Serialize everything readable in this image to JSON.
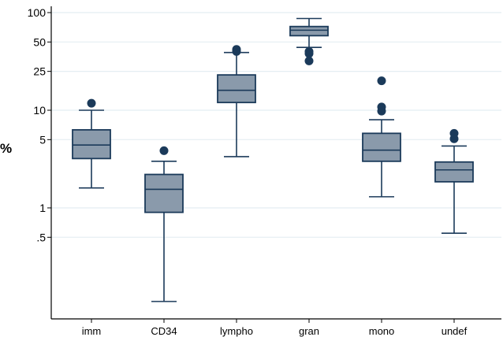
{
  "chart_data": {
    "type": "box",
    "ylabel": "%",
    "yscale": "log",
    "ylim": [
      0.07,
      130
    ],
    "yticks": [
      {
        "value": 100,
        "label": "100"
      },
      {
        "value": 50,
        "label": "50"
      },
      {
        "value": 25,
        "label": "25"
      },
      {
        "value": 10,
        "label": "10"
      },
      {
        "value": 5,
        "label": "5"
      },
      {
        "value": 1,
        "label": "1"
      },
      {
        "value": 0.5,
        "label": ".5"
      }
    ],
    "grid": true,
    "categories": [
      "imm",
      "CD34",
      "lympho",
      "gran",
      "mono",
      "undef"
    ],
    "boxes": [
      {
        "min": 1.6,
        "q1": 3.2,
        "median": 4.4,
        "q3": 6.3,
        "max": 10.0,
        "outliers": [
          11.8
        ]
      },
      {
        "min": 0.11,
        "q1": 0.9,
        "median": 1.55,
        "q3": 2.2,
        "max": 3.0,
        "outliers": [
          3.85
        ]
      },
      {
        "min": 3.35,
        "q1": 12.0,
        "median": 16.0,
        "q3": 23.0,
        "max": 39.0,
        "outliers": [
          40.0,
          42.0
        ]
      },
      {
        "min": 44.0,
        "q1": 58.0,
        "median": 66.0,
        "q3": 72.0,
        "max": 87.0,
        "outliers": [
          32.0,
          38.0,
          40.0
        ]
      },
      {
        "min": 1.3,
        "q1": 3.0,
        "median": 3.9,
        "q3": 5.8,
        "max": 8.0,
        "outliers": [
          9.8,
          10.8,
          20.0
        ]
      },
      {
        "min": 0.55,
        "q1": 1.85,
        "median": 2.45,
        "q3": 2.95,
        "max": 4.3,
        "outliers": [
          5.1,
          5.8
        ]
      }
    ],
    "colors": {
      "box_fill": "#8a9aab",
      "line": "#1b3a5a",
      "grid": "#e4eef2",
      "axis": "#000000"
    }
  }
}
